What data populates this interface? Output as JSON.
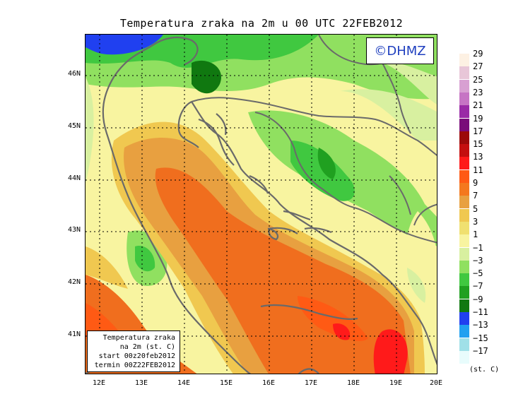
{
  "title": "Temperatura zraka na 2m u 00 UTC 22FEB2012",
  "logo": "©DHMZ",
  "info_box": {
    "line1": "Temperatura zraka",
    "line2": "na 2m (st. C)",
    "line3": "start 00z20feb2012",
    "line4": "termin 00Z22FEB2012"
  },
  "lat_ticks": [
    "46N",
    "45N",
    "44N",
    "43N",
    "42N",
    "41N"
  ],
  "lon_ticks": [
    "12E",
    "13E",
    "14E",
    "15E",
    "16E",
    "17E",
    "18E",
    "19E",
    "20E"
  ],
  "legend": {
    "unit": "(st. C)",
    "levels": [
      "29",
      "27",
      "25",
      "23",
      "21",
      "19",
      "17",
      "15",
      "13",
      "11",
      "9",
      "7",
      "5",
      "3",
      "1",
      "−1",
      "−3",
      "−5",
      "−7",
      "−9",
      "−11",
      "−13",
      "−15",
      "−17"
    ],
    "colors": [
      "#fdf1e3",
      "#e8c6d8",
      "#d8a0d2",
      "#c674c4",
      "#9a2aa6",
      "#7a0c7a",
      "#9c0a0a",
      "#c40f0f",
      "#ff1a1a",
      "#ff5a14",
      "#f4781e",
      "#e8a040",
      "#f0c850",
      "#f0e070",
      "#f8f4a0",
      "#d8f0a0",
      "#90e060",
      "#40c840",
      "#20a020",
      "#107810",
      "#2040f0",
      "#20a0f0",
      "#a0e0e8",
      "#e8fcfc"
    ]
  },
  "map_colors": {
    "land_green": "#2fc42f",
    "warm_orange": "#f06e1e",
    "coast": "#6a6a6a"
  }
}
